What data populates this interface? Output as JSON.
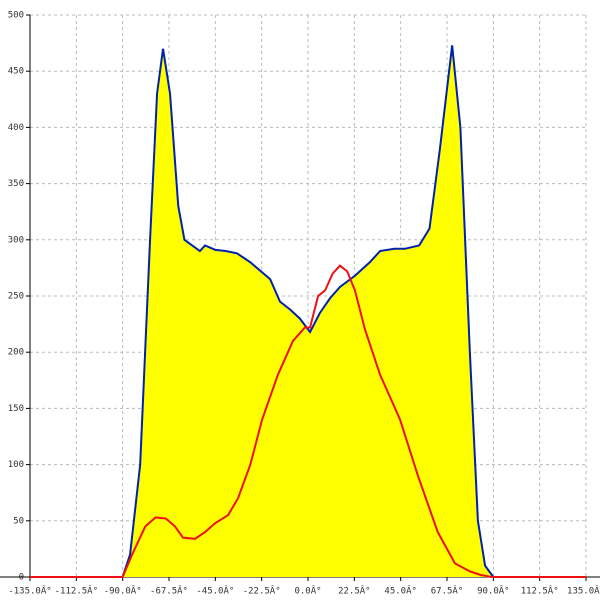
{
  "chart_data": {
    "type": "area",
    "xlim": [
      -135,
      135
    ],
    "ylim": [
      0,
      500
    ],
    "xticks": [
      {
        "value": -135,
        "label": "-135.0Â°"
      },
      {
        "value": -112.5,
        "label": "-112.5Â°"
      },
      {
        "value": -90,
        "label": "-90.0Â°"
      },
      {
        "value": -67.5,
        "label": "-67.5Â°"
      },
      {
        "value": -45,
        "label": "-45.0Â°"
      },
      {
        "value": -22.5,
        "label": "-22.5Â°"
      },
      {
        "value": 0,
        "label": "0.0Â°"
      },
      {
        "value": 22.5,
        "label": "22.5Â°"
      },
      {
        "value": 45,
        "label": "45.0Â°"
      },
      {
        "value": 67.5,
        "label": "67.5Â°"
      },
      {
        "value": 90,
        "label": "90.0Â°"
      },
      {
        "value": 112.5,
        "label": "112.5Â°"
      },
      {
        "value": 135,
        "label": "135.0Â°"
      }
    ],
    "yticks": [
      0,
      50,
      100,
      150,
      200,
      250,
      300,
      350,
      400,
      450,
      500
    ],
    "grid": true,
    "series": [
      {
        "color": "#0022aa",
        "fill": "#ffff00",
        "x": [
          -90,
          -86.4,
          -81.5,
          -76.7,
          -73.3,
          -70.4,
          -67,
          -63,
          -60,
          -52.5,
          -50,
          -45,
          -40,
          -34.5,
          -28,
          -18.4,
          -13.6,
          -8.7,
          -4,
          1,
          5.8,
          10.7,
          15.5,
          22.8,
          30,
          35,
          42,
          47,
          54,
          59,
          64,
          70,
          74,
          78.6,
          82.5,
          86,
          90
        ],
        "values": [
          0,
          20,
          100,
          300,
          430,
          470,
          430,
          330,
          300,
          290,
          295,
          291,
          290,
          288,
          280,
          265,
          245,
          238,
          230,
          218,
          235,
          248,
          258,
          268,
          280,
          290,
          292,
          292,
          295,
          310,
          380,
          473,
          400,
          200,
          50,
          10,
          0
        ]
      },
      {
        "color": "#ee1111",
        "x": [
          -135,
          -90,
          -85.4,
          -79,
          -74,
          -69,
          -64.6,
          -60.7,
          -54.9,
          -50,
          -45,
          -38.8,
          -34,
          -28,
          -22.3,
          -14.6,
          -7.3,
          -1.5,
          1,
          4.9,
          8.3,
          12,
          15.5,
          19,
          22.8,
          27.7,
          35,
          44.7,
          53.4,
          63,
          71.4,
          78.6,
          83.5,
          89,
          135
        ],
        "values": [
          0,
          0,
          20,
          45,
          53,
          52,
          45,
          35,
          34,
          40,
          48,
          55,
          70,
          100,
          140,
          180,
          210,
          222,
          222,
          250,
          255,
          270,
          277,
          272,
          255,
          220,
          180,
          140,
          90,
          40,
          12,
          5,
          2,
          0,
          0
        ]
      }
    ]
  }
}
